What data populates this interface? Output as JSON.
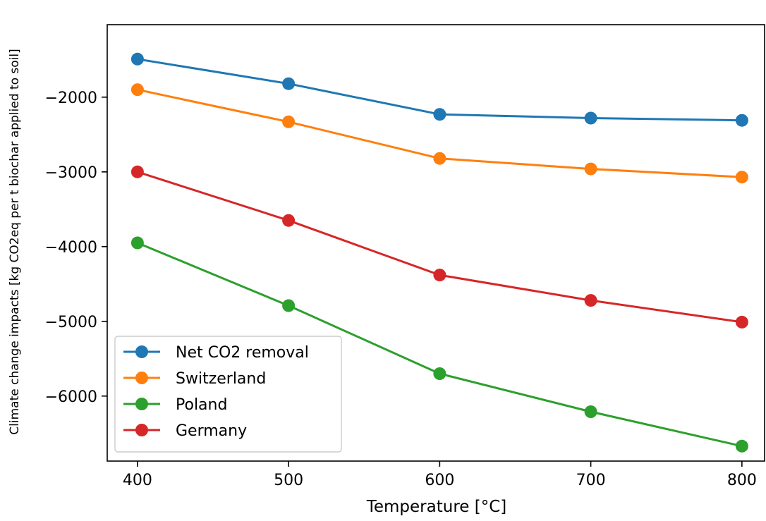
{
  "chart_data": {
    "type": "line",
    "title": "",
    "xlabel": "Temperature [°C]",
    "ylabel": "Climate change impacts [kg CO2eq per t biochar applied to soil]",
    "x": [
      400,
      500,
      600,
      700,
      800
    ],
    "xticks": [
      400,
      500,
      600,
      700,
      800
    ],
    "xtick_labels": [
      "400",
      "500",
      "600",
      "700",
      "800"
    ],
    "yticks": [
      -2000,
      -3000,
      -4000,
      -5000,
      -6000
    ],
    "ytick_labels": [
      "−2000",
      "−3000",
      "−4000",
      "−5000",
      "−6000"
    ],
    "xlim": [
      380,
      815
    ],
    "ylim": [
      -6870,
      -1030
    ],
    "grid": false,
    "legend_position": "lower-left",
    "series": [
      {
        "name": "Net CO2 removal",
        "color": "#1f77b4",
        "values": [
          -1490,
          -1820,
          -2230,
          -2280,
          -2310
        ]
      },
      {
        "name": "Switzerland",
        "color": "#ff7f0e",
        "values": [
          -1900,
          -2330,
          -2820,
          -2960,
          -3070
        ]
      },
      {
        "name": "Poland",
        "color": "#2ca02c",
        "values": [
          -3950,
          -4790,
          -5700,
          -6210,
          -6670
        ]
      },
      {
        "name": "Germany",
        "color": "#d62728",
        "values": [
          -3000,
          -3650,
          -4380,
          -4720,
          -5010
        ]
      }
    ]
  }
}
